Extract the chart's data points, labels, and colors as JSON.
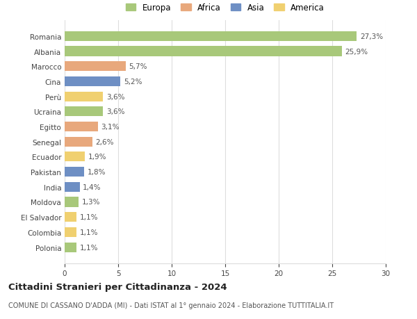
{
  "countries": [
    "Romania",
    "Albania",
    "Marocco",
    "Cina",
    "Perù",
    "Ucraina",
    "Egitto",
    "Senegal",
    "Ecuador",
    "Pakistan",
    "India",
    "Moldova",
    "El Salvador",
    "Colombia",
    "Polonia"
  ],
  "values": [
    27.3,
    25.9,
    5.7,
    5.2,
    3.6,
    3.6,
    3.1,
    2.6,
    1.9,
    1.8,
    1.4,
    1.3,
    1.1,
    1.1,
    1.1
  ],
  "labels": [
    "27,3%",
    "25,9%",
    "5,7%",
    "5,2%",
    "3,6%",
    "3,6%",
    "3,1%",
    "2,6%",
    "1,9%",
    "1,8%",
    "1,4%",
    "1,3%",
    "1,1%",
    "1,1%",
    "1,1%"
  ],
  "continents": [
    "Europa",
    "Europa",
    "Africa",
    "Asia",
    "America",
    "Europa",
    "Africa",
    "Africa",
    "America",
    "Asia",
    "Asia",
    "Europa",
    "America",
    "America",
    "Europa"
  ],
  "continent_colors": {
    "Europa": "#a8c87a",
    "Africa": "#e8a87c",
    "Asia": "#6e8fc4",
    "America": "#f0d070"
  },
  "legend_order": [
    "Europa",
    "Africa",
    "Asia",
    "America"
  ],
  "title": "Cittadini Stranieri per Cittadinanza - 2024",
  "subtitle": "COMUNE DI CASSANO D'ADDA (MI) - Dati ISTAT al 1° gennaio 2024 - Elaborazione TUTTITALIA.IT",
  "xlim": [
    0,
    30
  ],
  "xticks": [
    0,
    5,
    10,
    15,
    20,
    25,
    30
  ],
  "background_color": "#ffffff",
  "grid_color": "#dddddd",
  "bar_height": 0.65,
  "title_fontsize": 9.5,
  "subtitle_fontsize": 7.0,
  "tick_fontsize": 7.5,
  "label_fontsize": 7.5,
  "legend_fontsize": 8.5
}
